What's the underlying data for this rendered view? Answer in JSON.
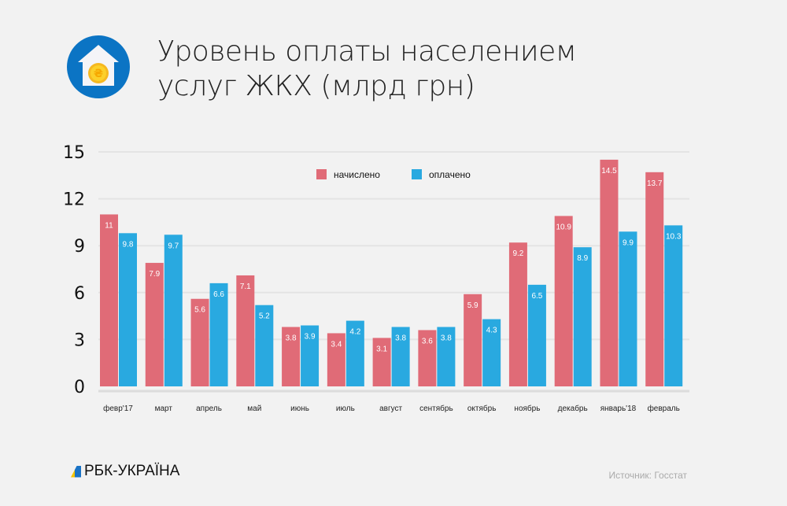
{
  "header": {
    "title_line1": "Уровень оплаты населением",
    "title_line2": "услуг ЖКХ (млрд грн)",
    "icon": "house-coin-icon"
  },
  "footer": {
    "brand": "РБК-УКРАЇНА",
    "source": "Источник: Госстат"
  },
  "chart_data": {
    "type": "bar",
    "title": "Уровень оплаты населением услуг ЖКХ (млрд грн)",
    "xlabel": "",
    "ylabel": "",
    "ylim": [
      0,
      15
    ],
    "yticks": [
      0,
      3,
      6,
      9,
      12,
      15
    ],
    "grid": true,
    "legend_position": "top-center",
    "categories": [
      "февр'17",
      "март",
      "апрель",
      "май",
      "июнь",
      "июль",
      "август",
      "сентябрь",
      "октябрь",
      "ноябрь",
      "декабрь",
      "январь'18",
      "февраль"
    ],
    "series": [
      {
        "name": "начислено",
        "color": "#e06b77",
        "values": [
          11,
          7.9,
          5.6,
          7.1,
          3.8,
          3.4,
          3.1,
          3.6,
          5.9,
          9.2,
          10.9,
          14.5,
          13.7
        ]
      },
      {
        "name": "оплачено",
        "color": "#29a9e0",
        "values": [
          9.8,
          9.7,
          6.6,
          5.2,
          3.9,
          4.2,
          3.8,
          3.8,
          4.3,
          6.5,
          8.9,
          9.9,
          10.3
        ]
      }
    ]
  }
}
